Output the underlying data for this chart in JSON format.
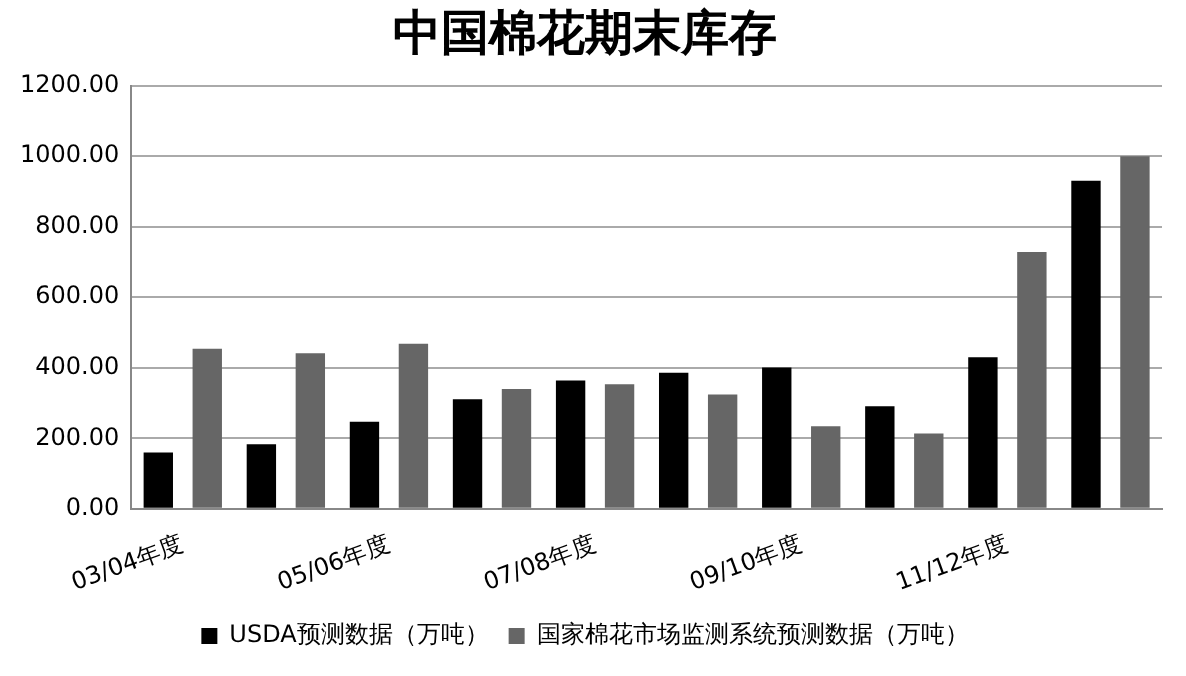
{
  "chart_data": {
    "type": "bar",
    "title": "中国棉花期末库存",
    "categories": [
      "03/04年度",
      null,
      "05/06年度",
      null,
      "07/08年度",
      null,
      "09/10年度",
      null,
      "11/12年度",
      null
    ],
    "series": [
      {
        "name": "USDA预测数据（万吨）",
        "color": "#000000",
        "values": [
          160,
          183,
          247,
          311,
          364,
          386,
          401,
          291,
          430,
          930
        ]
      },
      {
        "name": "国家棉花市场监测系统预测数据（万吨）",
        "color": "#666666",
        "values": [
          454,
          441,
          468,
          340,
          353,
          324,
          234,
          214,
          728,
          1000
        ]
      }
    ],
    "ylim": [
      0,
      1200
    ],
    "yticks": [
      {
        "value": 0,
        "label": "0.00"
      },
      {
        "value": 200,
        "label": "200.00"
      },
      {
        "value": 400,
        "label": "400.00"
      },
      {
        "value": 600,
        "label": "600.00"
      },
      {
        "value": 800,
        "label": "800.00"
      },
      {
        "value": 1000,
        "label": "1000.00"
      },
      {
        "value": 1200,
        "label": "1200.00"
      }
    ],
    "grid": "y",
    "legend": "bottom"
  }
}
